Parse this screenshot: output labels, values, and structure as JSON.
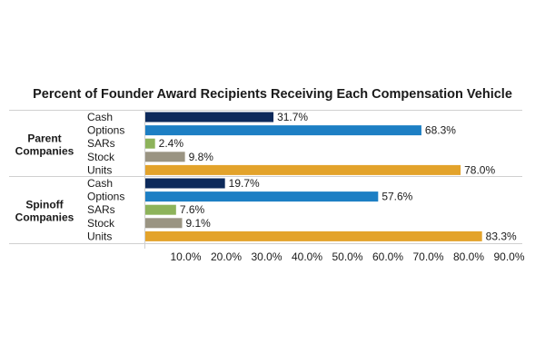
{
  "chart_data": {
    "type": "bar",
    "orientation": "horizontal",
    "title": "Percent of Founder Award Recipients Receiving Each Compensation Vehicle",
    "xlim": [
      0,
      90
    ],
    "x_ticks": [
      "10.0%",
      "20.0%",
      "30.0%",
      "40.0%",
      "50.0%",
      "60.0%",
      "70.0%",
      "80.0%",
      "90.0%"
    ],
    "value_format": "percent_1dp",
    "groups": [
      {
        "name": "Parent Companies",
        "name_lines": [
          "Parent",
          "Companies"
        ],
        "bars": [
          {
            "category": "Cash",
            "value": 31.7,
            "label": "31.7%",
            "color": "#0d2a5b"
          },
          {
            "category": "Options",
            "value": 68.3,
            "label": "68.3%",
            "color": "#1d7fc4"
          },
          {
            "category": "SARs",
            "value": 2.4,
            "label": "2.4%",
            "color": "#8db35a"
          },
          {
            "category": "Stock",
            "value": 9.8,
            "label": "9.8%",
            "color": "#9a9482"
          },
          {
            "category": "Units",
            "value": 78.0,
            "label": "78.0%",
            "color": "#e3a32b"
          }
        ]
      },
      {
        "name": "Spinoff Companies",
        "name_lines": [
          "Spinoff",
          "Companies"
        ],
        "bars": [
          {
            "category": "Cash",
            "value": 19.7,
            "label": "19.7%",
            "color": "#0d2a5b"
          },
          {
            "category": "Options",
            "value": 57.6,
            "label": "57.6%",
            "color": "#1d7fc4"
          },
          {
            "category": "SARs",
            "value": 7.6,
            "label": "7.6%",
            "color": "#8db35a"
          },
          {
            "category": "Stock",
            "value": 9.1,
            "label": "9.1%",
            "color": "#9a9482"
          },
          {
            "category": "Units",
            "value": 83.3,
            "label": "83.3%",
            "color": "#e3a32b"
          }
        ]
      }
    ]
  }
}
